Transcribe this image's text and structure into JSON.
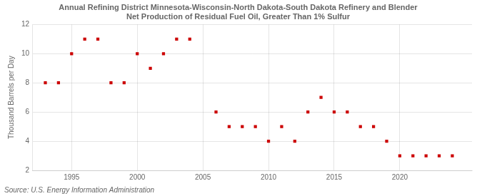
{
  "chart_data": {
    "type": "scatter",
    "title": "Annual Refining District Minnesota-Wisconsin-North Dakota-South Dakota Refinery and Blender\nNet Production of Residual Fuel Oil, Greater Than 1% Sulfur",
    "x": [
      1993,
      1994,
      1995,
      1996,
      1997,
      1998,
      1999,
      2000,
      2001,
      2002,
      2003,
      2004,
      2006,
      2007,
      2008,
      2009,
      2010,
      2011,
      2012,
      2013,
      2014,
      2015,
      2016,
      2017,
      2018,
      2019,
      2020,
      2021,
      2022,
      2023,
      2024
    ],
    "values": [
      8,
      8,
      10,
      11,
      11,
      8,
      8,
      10,
      9,
      10,
      11,
      11,
      6,
      5,
      5,
      5,
      4,
      5,
      4,
      6,
      7,
      6,
      6,
      5,
      5,
      4,
      3,
      3,
      3,
      3,
      3
    ],
    "ylabel": "Thousand Barrels per Day",
    "source": "Source: U.S. Energy Information Administration",
    "color": "#cc0000",
    "marker": "square",
    "xlim": [
      1992.0,
      2025.5
    ],
    "xticks": [
      1995,
      2000,
      2005,
      2010,
      2015,
      2020
    ],
    "ylim": [
      2,
      12
    ],
    "yticks": [
      2,
      4,
      6,
      8,
      10,
      12
    ],
    "grid": true
  }
}
